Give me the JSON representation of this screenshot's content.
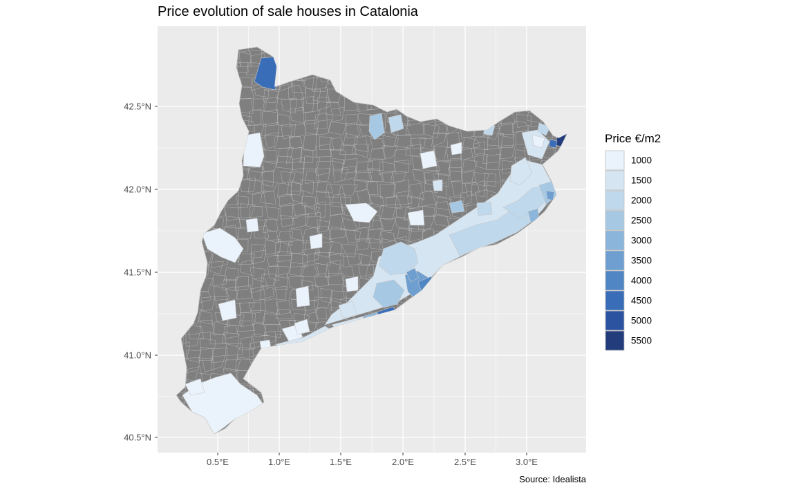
{
  "title": "Price evolution of sale houses in Catalonia",
  "caption": "Source: Idealista",
  "map": {
    "x_ticks": [
      "0.5°E",
      "1.0°E",
      "1.5°E",
      "2.0°E",
      "2.5°E",
      "3.0°E"
    ],
    "y_ticks": [
      "42.5°N",
      "42.0°N",
      "41.5°N",
      "41.0°N",
      "40.5°N"
    ],
    "background_color": "#ebebeb",
    "grid_color": "#ffffff",
    "no_data_color": "#7f7f7f",
    "border_color": "#c8c8c8"
  },
  "legend": {
    "title": "Price €/m2",
    "items": [
      {
        "label": "1000",
        "color": "#eaf3fb"
      },
      {
        "label": "1500",
        "color": "#d5e5f2"
      },
      {
        "label": "2000",
        "color": "#bfd8ec"
      },
      {
        "label": "2500",
        "color": "#a6c8e3"
      },
      {
        "label": "3000",
        "color": "#8bb5da"
      },
      {
        "label": "3500",
        "color": "#6e9fd0"
      },
      {
        "label": "4000",
        "color": "#5186c4"
      },
      {
        "label": "4500",
        "color": "#3a6db8"
      },
      {
        "label": "5000",
        "color": "#2b53a0"
      },
      {
        "label": "5500",
        "color": "#233c7c"
      }
    ]
  }
}
